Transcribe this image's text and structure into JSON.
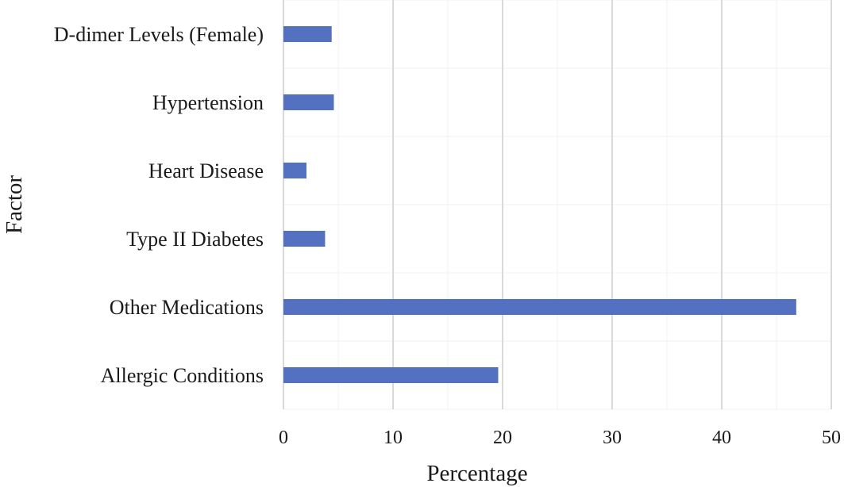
{
  "chart_data": {
    "type": "bar",
    "orientation": "horizontal",
    "title": "",
    "xlabel": "Percentage",
    "ylabel": "Factor",
    "xlim": [
      0,
      50
    ],
    "x_ticks": [
      "0",
      "10",
      "20",
      "30",
      "40",
      "50"
    ],
    "grid": true,
    "legend": "none",
    "bar_color": "#5470C0",
    "categories": [
      "D-dimer Levels (Female)",
      "Hypertension",
      "Heart Disease",
      "Type II Diabetes",
      "Other Medications",
      "Allergic Conditions"
    ],
    "values": [
      4.4,
      4.6,
      2.1,
      3.8,
      46.8,
      19.6
    ]
  }
}
